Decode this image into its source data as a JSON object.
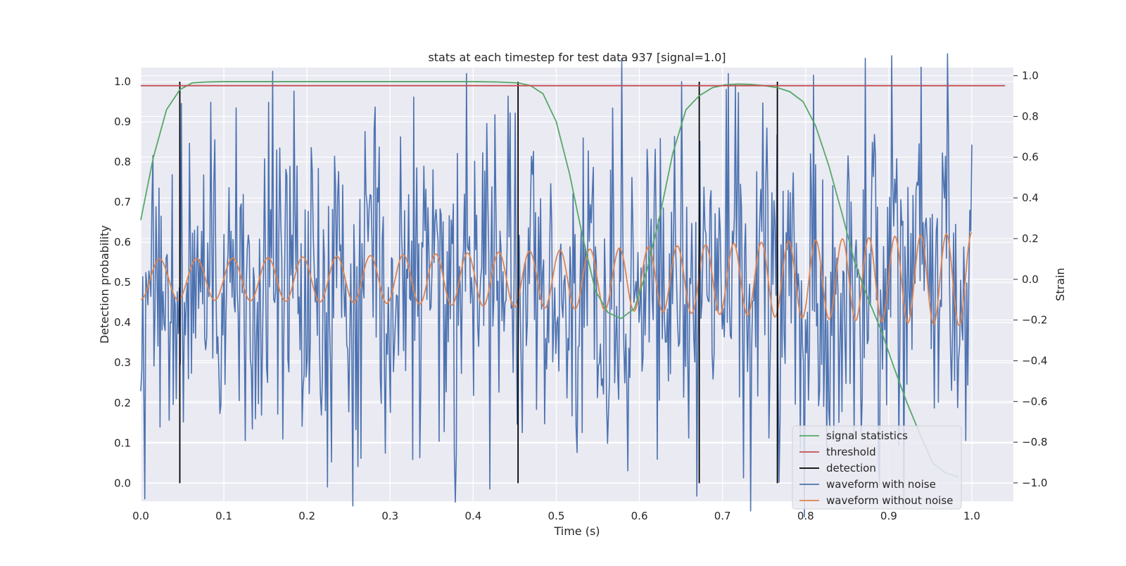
{
  "chart_data": {
    "type": "line",
    "title": "stats at each timestep for test data 937 [signal=1.0]",
    "xlabel": "Time (s)",
    "ylabel": "Detection probability",
    "y2label": "Strain",
    "xlim": [
      0.0,
      1.05
    ],
    "ylim": [
      -0.045,
      1.035
    ],
    "y2lim": [
      -1.09,
      1.04
    ],
    "xticks": [
      "0.0",
      "0.1",
      "0.2",
      "0.3",
      "0.4",
      "0.5",
      "0.6",
      "0.7",
      "0.8",
      "0.9",
      "1.0"
    ],
    "yticks": [
      "0.0",
      "0.1",
      "0.2",
      "0.3",
      "0.4",
      "0.5",
      "0.6",
      "0.7",
      "0.8",
      "0.9",
      "1.0"
    ],
    "y2ticks": [
      "−1.0",
      "−0.8",
      "−0.6",
      "−0.4",
      "−0.2",
      "0.0",
      "0.2",
      "0.4",
      "0.6",
      "0.8",
      "1.0"
    ],
    "grid": true,
    "legend_position": "lower-right",
    "legend": [
      {
        "name": "signal statistics",
        "color": "#55a868"
      },
      {
        "name": "threshold",
        "color": "#c44e52"
      },
      {
        "name": "detection",
        "color": "#000000"
      },
      {
        "name": "waveform with noise",
        "color": "#4c72b0"
      },
      {
        "name": "waveform without noise",
        "color": "#dd8452"
      }
    ],
    "series": [
      {
        "name": "signal statistics",
        "axis": "left",
        "x": [
          0.0,
          0.015,
          0.031,
          0.047,
          0.062,
          0.078,
          0.1,
          0.2,
          0.3,
          0.4,
          0.43,
          0.454,
          0.469,
          0.484,
          0.5,
          0.516,
          0.531,
          0.547,
          0.562,
          0.578,
          0.594,
          0.609,
          0.625,
          0.64,
          0.656,
          0.672,
          0.688,
          0.703,
          0.719,
          0.734,
          0.75,
          0.766,
          0.781,
          0.797,
          0.812,
          0.828,
          0.844,
          0.859,
          0.875,
          0.891,
          0.906,
          0.922,
          0.938,
          0.953,
          0.969,
          0.984
        ],
        "values": [
          0.655,
          0.81,
          0.93,
          0.98,
          0.997,
          0.999,
          1.0,
          1.0,
          1.0,
          1.0,
          0.999,
          0.997,
          0.99,
          0.97,
          0.9,
          0.77,
          0.62,
          0.48,
          0.425,
          0.41,
          0.435,
          0.53,
          0.67,
          0.82,
          0.93,
          0.965,
          0.985,
          0.992,
          0.994,
          0.993,
          0.99,
          0.985,
          0.975,
          0.95,
          0.89,
          0.79,
          0.67,
          0.55,
          0.46,
          0.38,
          0.29,
          0.2,
          0.12,
          0.05,
          0.025,
          0.015
        ]
      },
      {
        "name": "threshold",
        "axis": "left",
        "x": [
          0.0,
          1.04
        ],
        "values": [
          0.99,
          0.99
        ]
      }
    ],
    "detections": [
      0.047,
      0.454,
      0.672,
      0.766
    ],
    "waveform": {
      "axis": "right",
      "t_start": 0.0,
      "t_end": 1.0,
      "samples": 820,
      "noise_sigma": 0.4,
      "seed": 937,
      "clean_start_freq_hz": 22,
      "clean_end_freq_hz": 33,
      "clean_start_amp": 0.1,
      "clean_end_amp": 0.23
    }
  }
}
